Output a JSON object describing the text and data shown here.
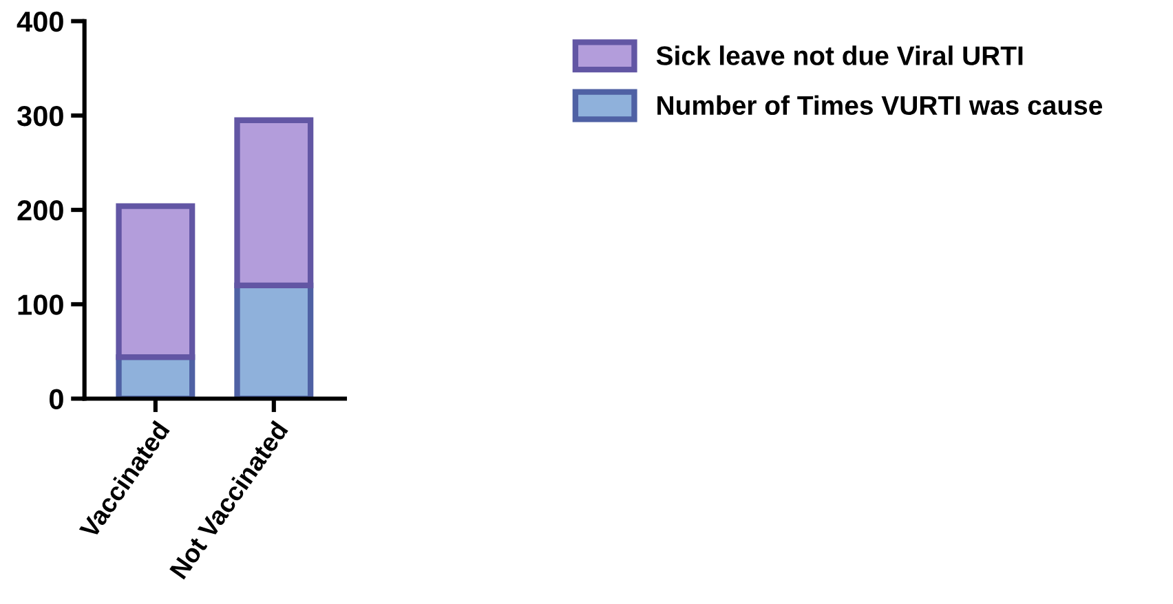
{
  "chart_data": {
    "type": "bar",
    "stacked": true,
    "categories": [
      "Vaccinated",
      "Not Vaccinated"
    ],
    "series": [
      {
        "name": "Number of Times VURTI was cause",
        "color": "#8fb1db",
        "values": [
          44,
          120
        ]
      },
      {
        "name": "Sick leave not due Viral URTI",
        "color": "#b39ddb",
        "values": [
          160,
          175
        ]
      }
    ],
    "ylim": [
      0,
      400
    ],
    "yticks": [
      0,
      100,
      200,
      300,
      400
    ],
    "grid": false,
    "legend": "top right"
  }
}
